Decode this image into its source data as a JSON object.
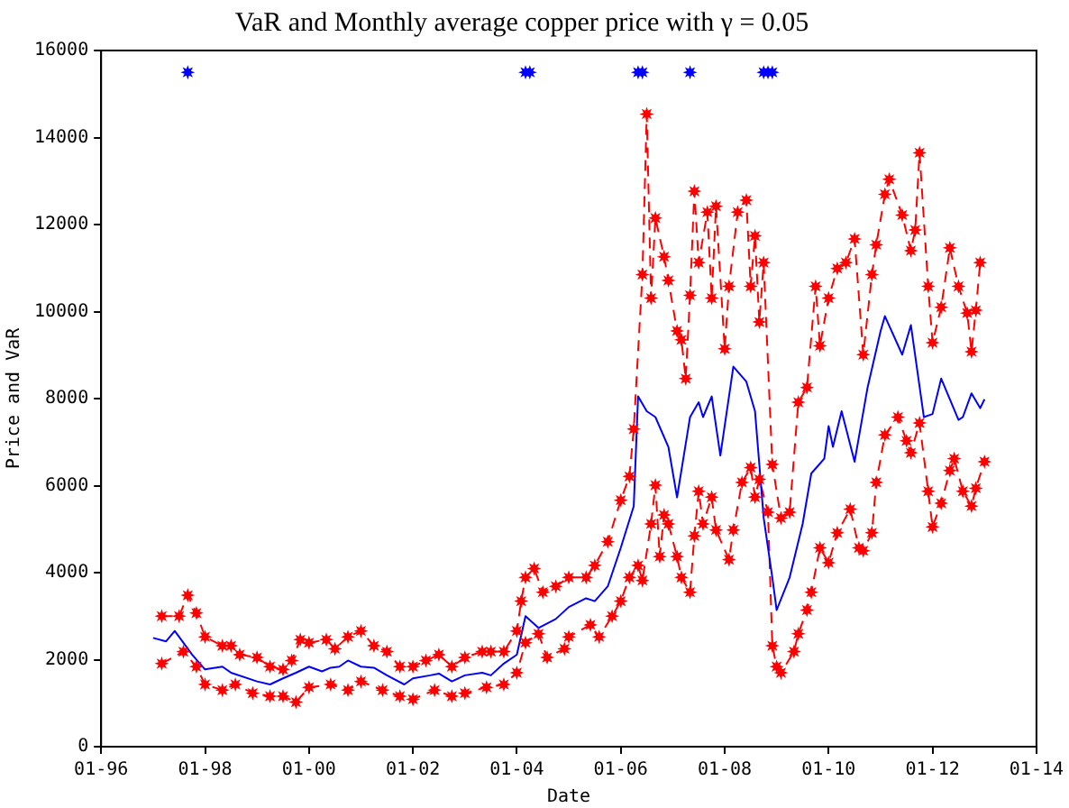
{
  "chart_data": {
    "type": "line",
    "title": "VaR and Monthly average copper price with γ = 0.05",
    "xlabel": "Date",
    "ylabel": "Price and VaR",
    "xlim": [
      "1996-01",
      "2014-01"
    ],
    "xticks": [
      {
        "value": "1996-01",
        "label": "01-96"
      },
      {
        "value": "1998-01",
        "label": "01-98"
      },
      {
        "value": "2000-01",
        "label": "01-00"
      },
      {
        "value": "2002-01",
        "label": "01-02"
      },
      {
        "value": "2004-01",
        "label": "01-04"
      },
      {
        "value": "2006-01",
        "label": "01-06"
      },
      {
        "value": "2008-01",
        "label": "01-08"
      },
      {
        "value": "2010-01",
        "label": "01-10"
      },
      {
        "value": "2012-01",
        "label": "01-12"
      },
      {
        "value": "2014-01",
        "label": "01-14"
      }
    ],
    "ylim": [
      0,
      16000
    ],
    "yticks": [
      0,
      2000,
      4000,
      6000,
      8000,
      10000,
      12000,
      14000,
      16000
    ],
    "grid": false,
    "legend": false,
    "series": [
      {
        "type": "line",
        "color": "#0000ff",
        "marker": "none",
        "line_style": "solid",
        "x": [
          "1997-01",
          "1997-04",
          "1997-06",
          "1997-10",
          "1998-01",
          "1998-05",
          "1998-07",
          "1999-01",
          "1999-04",
          "1999-07",
          "1999-10",
          "2000-01",
          "2000-04",
          "2000-06",
          "2000-08",
          "2000-10",
          "2001-01",
          "2001-04",
          "2001-07",
          "2001-11",
          "2002-01",
          "2002-05",
          "2002-07",
          "2002-10",
          "2003-01",
          "2003-05",
          "2003-07",
          "2003-10",
          "2004-01",
          "2004-03",
          "2004-06",
          "2004-10",
          "2005-01",
          "2005-05",
          "2005-07",
          "2005-10",
          "2006-01",
          "2006-04",
          "2006-05",
          "2006-07",
          "2006-09",
          "2006-12",
          "2007-02",
          "2007-05",
          "2007-07",
          "2007-08",
          "2007-10",
          "2007-12",
          "2008-03",
          "2008-06",
          "2008-08",
          "2008-10",
          "2008-12",
          "2009-01",
          "2009-04",
          "2009-07",
          "2009-09",
          "2009-12",
          "2010-01",
          "2010-02",
          "2010-04",
          "2010-07",
          "2010-10",
          "2011-01",
          "2011-02",
          "2011-06",
          "2011-08",
          "2011-11",
          "2012-01",
          "2012-03",
          "2012-07",
          "2012-08",
          "2012-10",
          "2012-12",
          "2013-01"
        ],
        "values": [
          2500,
          2420,
          2660,
          2115,
          1775,
          1840,
          1700,
          1500,
          1430,
          1570,
          1700,
          1840,
          1730,
          1815,
          1840,
          1980,
          1840,
          1815,
          1640,
          1430,
          1570,
          1640,
          1680,
          1500,
          1640,
          1700,
          1640,
          1910,
          2115,
          3000,
          2730,
          2935,
          3210,
          3410,
          3345,
          3685,
          4570,
          5530,
          8050,
          7710,
          7575,
          6890,
          5730,
          7575,
          7915,
          7575,
          8050,
          6690,
          8735,
          8390,
          7710,
          5260,
          3890,
          3140,
          3890,
          5120,
          6280,
          6620,
          7370,
          6890,
          7710,
          6550,
          8255,
          9550,
          9895,
          9010,
          9690,
          7575,
          7645,
          8460,
          7510,
          7575,
          8120,
          7780,
          7985
        ]
      },
      {
        "type": "line",
        "color": "#ff0000",
        "marker": "cross",
        "line_style": "dashed",
        "x": [
          "1997-03",
          "1997-07",
          "1997-09",
          "1997-11",
          "1998-01",
          "1998-05",
          "1998-07",
          "1998-09",
          "1999-01",
          "1999-04",
          "1999-07",
          "1999-09",
          "1999-11",
          "2000-01",
          "2000-05",
          "2000-07",
          "2000-10",
          "2001-01",
          "2001-04",
          "2001-07",
          "2001-10",
          "2002-01",
          "2002-04",
          "2002-07",
          "2002-10",
          "2003-01",
          "2003-05",
          "2003-07",
          "2003-10",
          "2004-01",
          "2004-02",
          "2004-03",
          "2004-05",
          "2004-07",
          "2004-10",
          "2005-01",
          "2005-05",
          "2005-07",
          "2005-10",
          "2006-01",
          "2006-03",
          "2006-04",
          "2006-06",
          "2006-07",
          "2006-08",
          "2006-09",
          "2006-11",
          "2006-12",
          "2007-02",
          "2007-03",
          "2007-04",
          "2007-05",
          "2007-06",
          "2007-07",
          "2007-09",
          "2007-10",
          "2007-11",
          "2008-01",
          "2008-02",
          "2008-04",
          "2008-06",
          "2008-07",
          "2008-08",
          "2008-09",
          "2008-10",
          "2008-12",
          "2009-02",
          "2009-04",
          "2009-06",
          "2009-08",
          "2009-10",
          "2009-11",
          "2010-01",
          "2010-03",
          "2010-05",
          "2010-07",
          "2010-09",
          "2010-11",
          "2010-12",
          "2011-02",
          "2011-03",
          "2011-06",
          "2011-08",
          "2011-09",
          "2011-10",
          "2011-12",
          "2012-01",
          "2012-03",
          "2012-05",
          "2012-07",
          "2012-09",
          "2012-10",
          "2012-11",
          "2012-12"
        ],
        "values": [
          3000,
          3000,
          3480,
          3070,
          2525,
          2320,
          2320,
          2115,
          2050,
          1840,
          1775,
          1980,
          2460,
          2390,
          2460,
          2250,
          2525,
          2660,
          2320,
          2185,
          1840,
          1840,
          1980,
          2115,
          1840,
          2050,
          2185,
          2185,
          2185,
          2660,
          3345,
          3890,
          4095,
          3550,
          3685,
          3890,
          3890,
          4165,
          4710,
          5665,
          6210,
          7300,
          10850,
          14540,
          10310,
          12150,
          11260,
          10715,
          9555,
          9350,
          8460,
          10375,
          12765,
          11125,
          12285,
          10310,
          12420,
          9145,
          10580,
          12285,
          12560,
          10580,
          11740,
          9760,
          11125,
          6485,
          5255,
          5390,
          7915,
          8255,
          10580,
          9215,
          10310,
          10990,
          11125,
          11670,
          9010,
          10850,
          11535,
          12695,
          13040,
          12220,
          11400,
          11875,
          13650,
          10580,
          9285,
          10100,
          11465,
          10580,
          9965,
          9080,
          10030,
          11125
        ]
      },
      {
        "type": "line",
        "color": "#ff0000",
        "marker": "cross",
        "line_style": "dashed",
        "x": [
          "1997-03",
          "1997-08",
          "1997-11",
          "1998-01",
          "1998-05",
          "1998-08",
          "1998-12",
          "1999-04",
          "1999-07",
          "1999-10",
          "2000-01",
          "2000-06",
          "2000-10",
          "2001-01",
          "2001-06",
          "2001-10",
          "2002-01",
          "2002-06",
          "2002-10",
          "2003-01",
          "2003-06",
          "2003-10",
          "2004-01",
          "2004-03",
          "2004-06",
          "2004-08",
          "2004-12",
          "2005-01",
          "2005-06",
          "2005-08",
          "2005-11",
          "2006-01",
          "2006-03",
          "2006-05",
          "2006-06",
          "2006-08",
          "2006-09",
          "2006-10",
          "2006-11",
          "2006-12",
          "2007-02",
          "2007-03",
          "2007-05",
          "2007-06",
          "2007-07",
          "2007-08",
          "2007-10",
          "2007-11",
          "2008-02",
          "2008-03",
          "2008-05",
          "2008-07",
          "2008-08",
          "2008-09",
          "2008-11",
          "2008-12",
          "2009-01",
          "2009-02",
          "2009-05",
          "2009-06",
          "2009-08",
          "2009-09",
          "2009-11",
          "2010-01",
          "2010-03",
          "2010-06",
          "2010-08",
          "2010-09",
          "2010-11",
          "2010-12",
          "2011-02",
          "2011-05",
          "2011-07",
          "2011-08",
          "2011-10",
          "2011-12",
          "2012-01",
          "2012-03",
          "2012-05",
          "2012-06",
          "2012-08",
          "2012-10",
          "2012-11",
          "2013-01"
        ],
        "values": [
          1910,
          2185,
          1840,
          1430,
          1300,
          1430,
          1230,
          1160,
          1160,
          1025,
          1365,
          1430,
          1300,
          1500,
          1300,
          1160,
          1090,
          1300,
          1160,
          1230,
          1365,
          1430,
          1700,
          2390,
          2595,
          2050,
          2250,
          2525,
          2800,
          2525,
          3000,
          3345,
          3890,
          4165,
          3820,
          5120,
          6010,
          4370,
          5325,
          5120,
          4370,
          3890,
          3550,
          4845,
          5870,
          5120,
          5735,
          4980,
          4300,
          4980,
          6075,
          6415,
          5735,
          6145,
          5390,
          2320,
          1840,
          1700,
          2185,
          2595,
          3140,
          3550,
          4570,
          4230,
          4915,
          5460,
          4570,
          4505,
          4915,
          6075,
          7165,
          7575,
          7030,
          6755,
          7440,
          5870,
          5050,
          5595,
          6345,
          6620,
          5870,
          5530,
          5940,
          6550
        ]
      },
      {
        "type": "scatter",
        "color": "#0000ff",
        "marker": "cross",
        "x": [
          "1997-09",
          "2004-03",
          "2004-04",
          "2006-05",
          "2006-06",
          "2007-05",
          "2008-10",
          "2008-11",
          "2008-12"
        ],
        "values": [
          15500,
          15500,
          15500,
          15500,
          15500,
          15500,
          15500,
          15500,
          15500
        ]
      }
    ]
  }
}
